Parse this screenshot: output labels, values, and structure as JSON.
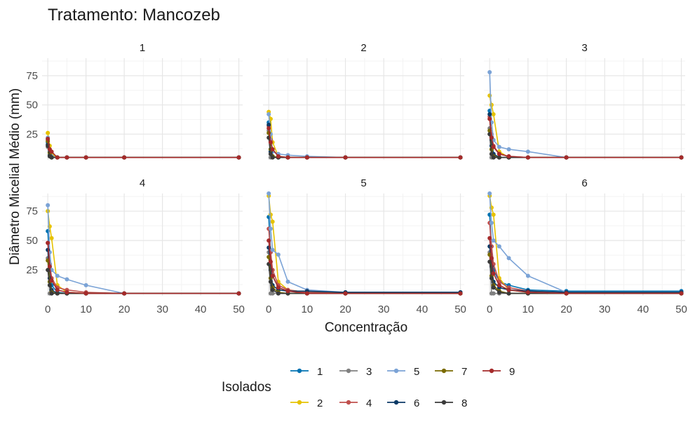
{
  "title": "Tratamento: Mancozeb",
  "chart_data": {
    "type": "line",
    "xlabel": "Concentração",
    "ylabel": "Diâmetro Micelial Médio (mm)",
    "xlim": [
      -1.5,
      51
    ],
    "ylim": [
      3,
      90
    ],
    "x_ticks": [
      0,
      10,
      20,
      30,
      40,
      50
    ],
    "y_ticks": [
      25,
      50,
      75
    ],
    "grid": true,
    "legend": {
      "title": "Isolados",
      "position": "bottom"
    },
    "series_style": [
      {
        "name": "1",
        "color": "#0072B2"
      },
      {
        "name": "2",
        "color": "#E6C200"
      },
      {
        "name": "3",
        "color": "#808080"
      },
      {
        "name": "4",
        "color": "#C0504D"
      },
      {
        "name": "5",
        "color": "#7BA3D6"
      },
      {
        "name": "6",
        "color": "#0B3A66"
      },
      {
        "name": "7",
        "color": "#7A6A00"
      },
      {
        "name": "8",
        "color": "#3A3A3A"
      },
      {
        "name": "9",
        "color": "#A52A2A"
      }
    ],
    "x": [
      0,
      0.5,
      1,
      2.5,
      5,
      10,
      20,
      50
    ],
    "panels": [
      {
        "label": "1",
        "series": [
          {
            "name": "1",
            "values": [
              18,
              10,
              6,
              5,
              5,
              5,
              5,
              5
            ]
          },
          {
            "name": "2",
            "values": [
              26,
              15,
              8,
              5,
              5,
              5,
              5,
              5
            ]
          },
          {
            "name": "3",
            "values": [
              14,
              6,
              5,
              5,
              5,
              5,
              5,
              5
            ]
          },
          {
            "name": "4",
            "values": [
              20,
              12,
              6,
              5,
              5,
              5,
              5,
              5
            ]
          },
          {
            "name": "5",
            "values": [
              22,
              11,
              6,
              5,
              5,
              5,
              5,
              5
            ]
          },
          {
            "name": "6",
            "values": [
              16,
              7,
              5,
              5,
              5,
              5,
              5,
              5
            ]
          },
          {
            "name": "7",
            "values": [
              19,
              9,
              5,
              5,
              5,
              5,
              5,
              5
            ]
          },
          {
            "name": "8",
            "values": [
              15,
              6,
              5,
              5,
              5,
              5,
              5,
              5
            ]
          },
          {
            "name": "9",
            "values": [
              21,
              12,
              10,
              5,
              5,
              5,
              5,
              5
            ]
          }
        ]
      },
      {
        "label": "2",
        "series": [
          {
            "name": "1",
            "values": [
              35,
              12,
              6,
              5,
              5,
              5,
              5,
              5
            ]
          },
          {
            "name": "2",
            "values": [
              44,
              38,
              18,
              6,
              5,
              5,
              5,
              5
            ]
          },
          {
            "name": "3",
            "values": [
              28,
              5,
              5,
              5,
              5,
              5,
              5,
              5
            ]
          },
          {
            "name": "4",
            "values": [
              32,
              20,
              12,
              6,
              5,
              5,
              5,
              5
            ]
          },
          {
            "name": "5",
            "values": [
              42,
              25,
              10,
              8,
              7,
              6,
              5,
              5
            ]
          },
          {
            "name": "6",
            "values": [
              33,
              10,
              6,
              5,
              5,
              5,
              5,
              5
            ]
          },
          {
            "name": "7",
            "values": [
              26,
              12,
              6,
              5,
              5,
              5,
              5,
              5
            ]
          },
          {
            "name": "8",
            "values": [
              22,
              8,
              5,
              5,
              5,
              5,
              5,
              5
            ]
          },
          {
            "name": "9",
            "values": [
              30,
              18,
              12,
              6,
              5,
              5,
              5,
              5
            ]
          }
        ]
      },
      {
        "label": "3",
        "series": [
          {
            "name": "1",
            "values": [
              45,
              20,
              8,
              5,
              5,
              5,
              5,
              5
            ]
          },
          {
            "name": "2",
            "values": [
              58,
              50,
              42,
              10,
              5,
              5,
              5,
              5
            ]
          },
          {
            "name": "3",
            "values": [
              30,
              5,
              5,
              5,
              5,
              5,
              5,
              5
            ]
          },
          {
            "name": "4",
            "values": [
              40,
              25,
              15,
              8,
              6,
              5,
              5,
              5
            ]
          },
          {
            "name": "5",
            "values": [
              78,
              35,
              20,
              14,
              12,
              10,
              5,
              5
            ]
          },
          {
            "name": "6",
            "values": [
              42,
              15,
              8,
              5,
              5,
              5,
              5,
              5
            ]
          },
          {
            "name": "7",
            "values": [
              28,
              12,
              6,
              5,
              5,
              5,
              5,
              5
            ]
          },
          {
            "name": "8",
            "values": [
              25,
              8,
              5,
              5,
              5,
              5,
              5,
              5
            ]
          },
          {
            "name": "9",
            "values": [
              38,
              22,
              14,
              8,
              6,
              5,
              5,
              5
            ]
          }
        ]
      },
      {
        "label": "4",
        "series": [
          {
            "name": "1",
            "values": [
              58,
              30,
              12,
              6,
              5,
              5,
              5,
              5
            ]
          },
          {
            "name": "2",
            "values": [
              75,
              62,
              52,
              12,
              6,
              5,
              5,
              5
            ]
          },
          {
            "name": "3",
            "values": [
              35,
              5,
              5,
              5,
              5,
              5,
              5,
              5
            ]
          },
          {
            "name": "4",
            "values": [
              48,
              30,
              18,
              10,
              8,
              6,
              5,
              5
            ]
          },
          {
            "name": "5",
            "values": [
              80,
              40,
              25,
              20,
              17,
              12,
              5,
              5
            ]
          },
          {
            "name": "6",
            "values": [
              42,
              18,
              8,
              5,
              5,
              5,
              5,
              5
            ]
          },
          {
            "name": "7",
            "values": [
              33,
              15,
              6,
              5,
              5,
              5,
              5,
              5
            ]
          },
          {
            "name": "8",
            "values": [
              25,
              12,
              5,
              5,
              5,
              5,
              5,
              5
            ]
          },
          {
            "name": "9",
            "values": [
              48,
              28,
              16,
              8,
              6,
              5,
              5,
              5
            ]
          }
        ]
      },
      {
        "label": "5",
        "series": [
          {
            "name": "1",
            "values": [
              70,
              40,
              20,
              10,
              7,
              6,
              6,
              6
            ]
          },
          {
            "name": "2",
            "values": [
              88,
              72,
              66,
              15,
              8,
              6,
              5,
              5
            ]
          },
          {
            "name": "3",
            "values": [
              40,
              5,
              5,
              5,
              5,
              5,
              5,
              5
            ]
          },
          {
            "name": "4",
            "values": [
              60,
              40,
              25,
              12,
              8,
              6,
              5,
              5
            ]
          },
          {
            "name": "5",
            "values": [
              90,
              60,
              42,
              38,
              15,
              8,
              6,
              6
            ]
          },
          {
            "name": "6",
            "values": [
              44,
              25,
              12,
              8,
              7,
              7,
              6,
              6
            ]
          },
          {
            "name": "7",
            "values": [
              36,
              18,
              10,
              6,
              5,
              5,
              5,
              5
            ]
          },
          {
            "name": "8",
            "values": [
              30,
              15,
              8,
              5,
              5,
              5,
              5,
              5
            ]
          },
          {
            "name": "9",
            "values": [
              50,
              32,
              20,
              10,
              7,
              5,
              5,
              5
            ]
          }
        ]
      },
      {
        "label": "6",
        "series": [
          {
            "name": "1",
            "values": [
              72,
              45,
              25,
              15,
              12,
              8,
              7,
              7
            ]
          },
          {
            "name": "2",
            "values": [
              88,
              78,
              72,
              18,
              8,
              6,
              5,
              5
            ]
          },
          {
            "name": "3",
            "values": [
              40,
              5,
              5,
              5,
              5,
              5,
              5,
              5
            ]
          },
          {
            "name": "4",
            "values": [
              65,
              45,
              30,
              15,
              10,
              7,
              6,
              6
            ]
          },
          {
            "name": "5",
            "values": [
              90,
              65,
              50,
              45,
              35,
              20,
              6,
              6
            ]
          },
          {
            "name": "6",
            "values": [
              45,
              28,
              15,
              10,
              8,
              7,
              6,
              6
            ]
          },
          {
            "name": "7",
            "values": [
              38,
              20,
              12,
              7,
              5,
              5,
              5,
              5
            ]
          },
          {
            "name": "8",
            "values": [
              32,
              18,
              10,
              6,
              5,
              5,
              5,
              5
            ]
          },
          {
            "name": "9",
            "values": [
              52,
              35,
              22,
              12,
              8,
              6,
              5,
              5
            ]
          }
        ]
      }
    ]
  }
}
